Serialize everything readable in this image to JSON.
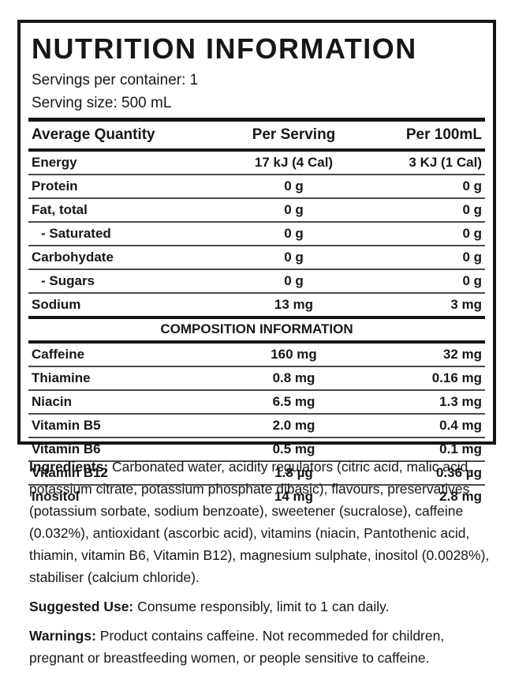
{
  "label": {
    "title": "NUTRITION INFORMATION",
    "servings_per_container": "Servings per container: 1",
    "serving_size": "Serving size: 500 mL"
  },
  "table": {
    "headers": {
      "quantity": "Average Quantity",
      "per_serving": "Per Serving",
      "per_100ml": "Per 100mL"
    },
    "nutrition_rows": [
      {
        "label": "Energy",
        "per_serving": "17 kJ (4 Cal)",
        "per_100ml": "3 KJ (1 Cal)",
        "indent": false
      },
      {
        "label": "Protein",
        "per_serving": "0 g",
        "per_100ml": "0 g",
        "indent": false
      },
      {
        "label": "Fat, total",
        "per_serving": "0 g",
        "per_100ml": "0 g",
        "indent": false
      },
      {
        "label": "- Saturated",
        "per_serving": "0 g",
        "per_100ml": "0 g",
        "indent": true
      },
      {
        "label": "Carbohydate",
        "per_serving": "0 g",
        "per_100ml": "0 g",
        "indent": false
      },
      {
        "label": "- Sugars",
        "per_serving": "0 g",
        "per_100ml": "0 g",
        "indent": true
      },
      {
        "label": "Sodium",
        "per_serving": "13 mg",
        "per_100ml": "3 mg",
        "indent": false
      }
    ],
    "composition_header": "COMPOSITION INFORMATION",
    "composition_rows": [
      {
        "label": "Caffeine",
        "per_serving": "160 mg",
        "per_100ml": "32 mg",
        "indent": false
      },
      {
        "label": "Thiamine",
        "per_serving": "0.8 mg",
        "per_100ml": "0.16 mg",
        "indent": false
      },
      {
        "label": "Niacin",
        "per_serving": "6.5 mg",
        "per_100ml": "1.3 mg",
        "indent": false
      },
      {
        "label": "Vitamin B5",
        "per_serving": "2.0 mg",
        "per_100ml": "0.4 mg",
        "indent": false
      },
      {
        "label": "Vitamin B6",
        "per_serving": "0.5 mg",
        "per_100ml": "0.1 mg",
        "indent": false
      },
      {
        "label": "Vitamin B12",
        "per_serving": "1.8 µg",
        "per_100ml": "0.36 µg",
        "indent": false
      },
      {
        "label": "Inositol",
        "per_serving": "14 mg",
        "per_100ml": "2.8 mg",
        "indent": false
      }
    ]
  },
  "footer": {
    "ingredients_label": "Ingredients:",
    "ingredients_text": "Carbonated water, acidity regulators (citric acid, malic acid, potassium citrate, potassium phosphate dibasic), flavours, preservatives (potassium sorbate, sodium benzoate), sweetener (sucralose), caffeine (0.032%), antioxidant (ascorbic acid), vitamins (niacin, Pantothenic acid, thiamin, vitamin B6, Vitamin B12), magnesium sulphate, inositol (0.0028%), stabiliser (calcium chloride).",
    "suggested_use_label": "Suggested Use:",
    "suggested_use_text": "Consume responsibly, limit to 1 can daily.",
    "warnings_label": "Warnings:",
    "warnings_text": "Product contains caffeine. Not recommeded for children, pregnant or breastfeeding women, or people sensitive to caffeine."
  }
}
